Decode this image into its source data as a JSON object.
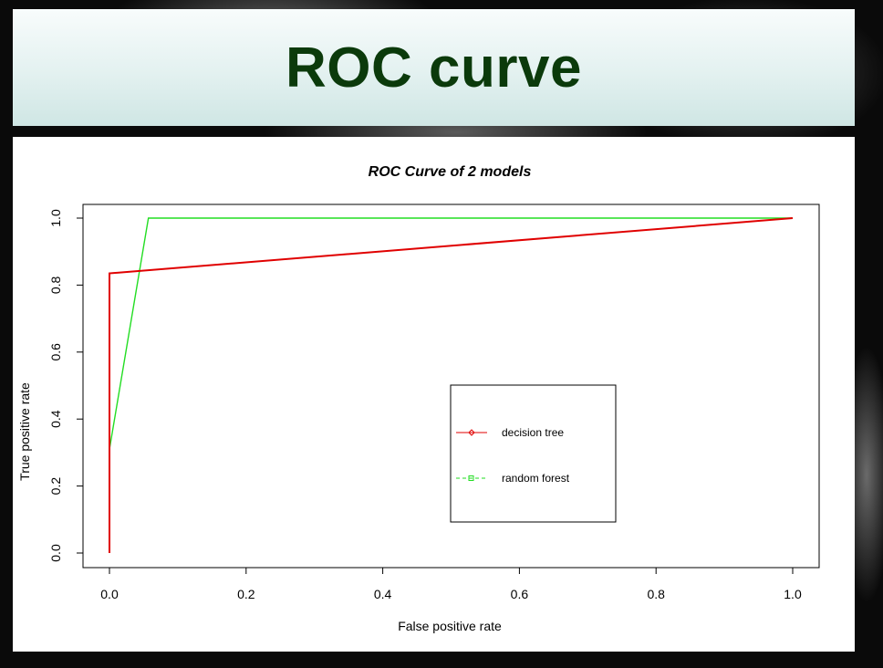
{
  "slide": {
    "title": "ROC curve"
  },
  "colors": {
    "title_text": "#0b3a0b",
    "decision_tree": "#e00000",
    "random_forest": "#22dd22"
  },
  "chart_data": {
    "type": "line",
    "title": "ROC Curve of 2 models",
    "xlabel": "False positive rate",
    "ylabel": "True positive rate",
    "xlim": [
      0,
      1
    ],
    "ylim": [
      0,
      1
    ],
    "xticks": [
      "0.0",
      "0.2",
      "0.4",
      "0.6",
      "0.8",
      "1.0"
    ],
    "yticks": [
      "0.0",
      "0.2",
      "0.4",
      "0.6",
      "0.8",
      "1.0"
    ],
    "grid": false,
    "legend_position": "center-right",
    "series": [
      {
        "name": "decision tree",
        "color": "#e00000",
        "marker": "diamond",
        "line_style": "solid",
        "x": [
          0.0,
          0.0,
          1.0
        ],
        "y": [
          0.0,
          0.835,
          1.0
        ]
      },
      {
        "name": "random forest",
        "color": "#22dd22",
        "marker": "square",
        "line_style": "dashed",
        "x": [
          0.0,
          0.057,
          1.0
        ],
        "y": [
          0.31,
          1.0,
          1.0
        ]
      }
    ]
  }
}
